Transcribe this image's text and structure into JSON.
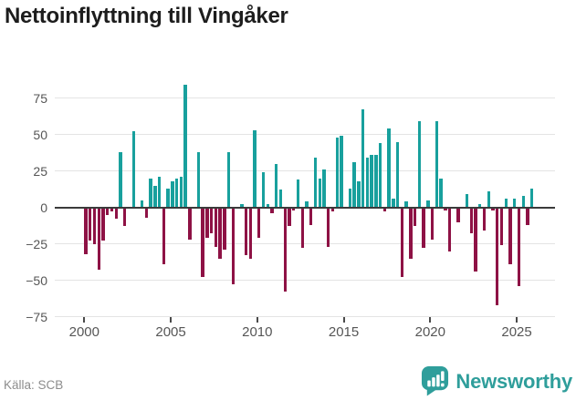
{
  "header": {
    "title": "Nettoinflyttning till Vingåker"
  },
  "footer": {
    "source_label": "Källa: SCB",
    "brand_name": "Newsworthy",
    "brand_icon": "speech-bubble-bar-chart-icon"
  },
  "colors": {
    "positive_bar": "#18a09d",
    "negative_bar": "#8e1245",
    "zero_axis": "#3b3b3b",
    "grid_line": "#e4e4e4",
    "tick_text": "#565656",
    "source_text": "#8c8c8c",
    "brand_teal": "#2f9e9b",
    "title_text": "#1d1d1d",
    "background": "#ffffff"
  },
  "chart_data": {
    "type": "bar",
    "title": "Nettoinflyttning till Vingåker",
    "xlabel": "",
    "ylabel": "",
    "frequency": "quarterly",
    "start": "2000 Q1",
    "end": "2025 Q4",
    "y_ticks": [
      75,
      50,
      25,
      0,
      -25,
      -50,
      -75
    ],
    "ylim": [
      -84,
      92
    ],
    "x_tick_labels": [
      "2000",
      "2005",
      "2010",
      "2015",
      "2020",
      "2025"
    ],
    "grid": true,
    "legend": "none",
    "values": [
      -32,
      -23,
      -25,
      -43,
      -23,
      -5,
      -3,
      -8,
      38,
      -13,
      0,
      52,
      0,
      5,
      -7,
      20,
      15,
      21,
      -39,
      13,
      18,
      20,
      21,
      84,
      -22,
      0,
      38,
      -48,
      -21,
      -18,
      -27,
      -35,
      -29,
      38,
      -53,
      0,
      2,
      -33,
      -35,
      53,
      -21,
      24,
      2,
      -4,
      30,
      12,
      -58,
      -13,
      -2,
      19,
      -28,
      4,
      -12,
      34,
      20,
      26,
      -27,
      -3,
      48,
      49,
      0,
      13,
      31,
      18,
      67,
      34,
      36,
      36,
      44,
      -3,
      54,
      6,
      45,
      -48,
      4,
      -35,
      -13,
      59,
      -28,
      5,
      -22,
      59,
      20,
      -2,
      -30,
      0,
      -10,
      0,
      9,
      -18,
      -44,
      2,
      -16,
      11,
      -2,
      -67,
      -26,
      6,
      -39,
      6,
      -54,
      8,
      -12,
      13
    ]
  }
}
